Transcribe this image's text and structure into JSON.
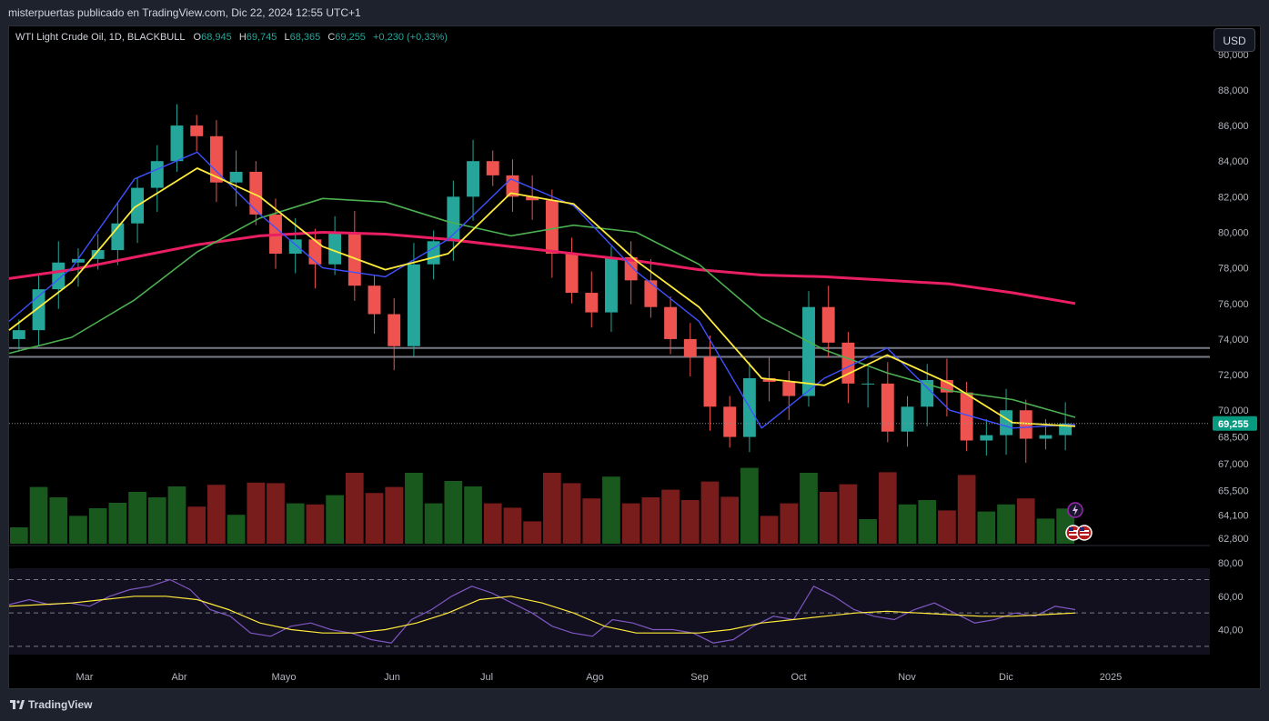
{
  "header": {
    "published": "misterpuertas publicado en TradingView.com, Dic 22, 2024 12:55 UTC+1"
  },
  "legend": {
    "symbol": "WTI Light Crude Oil, 1D, BLACKBULL",
    "open_label": "O",
    "open": "68,945",
    "high_label": "H",
    "high": "69,745",
    "low_label": "L",
    "low": "68,365",
    "close_label": "C",
    "close": "69,255",
    "change": "+0,230 (+0,33%)"
  },
  "currency": "USD",
  "footer": {
    "brand": "TradingView"
  },
  "colors": {
    "up": "#26a69a",
    "down": "#ef5350",
    "ma_fast": "#3f51ff",
    "ma_mid": "#ffeb3b",
    "ma_slow": "#4caf50",
    "ma_long": "#e91e63",
    "rsi": "#7e57c2",
    "rsi_ma": "#ffeb3b",
    "price_tag": "#089981"
  },
  "chart_data": {
    "type": "candlestick",
    "price_axis": {
      "ticks": [
        "90,000",
        "88,000",
        "86,000",
        "84,000",
        "82,000",
        "80,000",
        "78,000",
        "76,000",
        "74,000",
        "72,000",
        "70,000",
        "68,500",
        "67,000",
        "65,500",
        "64,100",
        "62,800"
      ],
      "ylim": [
        62.5,
        90.5
      ]
    },
    "months": [
      "Mar",
      "Abr",
      "Mayo",
      "Jun",
      "Jul",
      "Ago",
      "Sep",
      "Oct",
      "Nov",
      "Dic",
      "2025"
    ],
    "last_price": "69,255",
    "horizontal_levels": [
      73.5,
      73.0
    ],
    "ma200": [
      77.4,
      77.9,
      78.6,
      79.3,
      79.8,
      80.0,
      79.9,
      79.6,
      79.2,
      78.8,
      78.4,
      77.9,
      77.6,
      77.5,
      77.3,
      77.1,
      76.6,
      76.0
    ],
    "ma50": [
      73.2,
      74.1,
      76.2,
      78.9,
      80.8,
      81.9,
      81.7,
      80.6,
      79.8,
      80.4,
      80.0,
      78.2,
      75.2,
      73.4,
      72.1,
      71.1,
      70.6,
      69.6
    ],
    "ma20": [
      74.5,
      77.2,
      81.4,
      83.6,
      82.0,
      79.2,
      77.9,
      78.8,
      82.2,
      81.6,
      78.4,
      75.8,
      71.8,
      71.4,
      73.1,
      71.5,
      69.3,
      69.1
    ],
    "ma9": [
      75.0,
      78.0,
      83.0,
      84.5,
      81.0,
      78.0,
      77.5,
      79.6,
      83.0,
      81.5,
      77.8,
      75.0,
      69.0,
      71.8,
      73.5,
      70.0,
      69.0,
      69.2
    ],
    "closes": [
      74.5,
      76.8,
      78.3,
      78.5,
      79.0,
      80.5,
      82.5,
      84.0,
      86.0,
      85.4,
      82.8,
      83.4,
      81.0,
      78.8,
      79.6,
      78.2,
      80.0,
      77.0,
      75.4,
      73.6,
      78.2,
      79.5,
      82.0,
      84.0,
      83.2,
      82.0,
      81.8,
      78.8,
      76.6,
      75.5,
      78.6,
      77.3,
      75.8,
      74.0,
      73.0,
      70.2,
      68.5,
      71.8,
      71.6,
      70.8,
      75.8,
      73.8,
      71.5,
      71.5,
      68.8,
      70.2,
      71.7,
      71.0,
      68.3,
      68.6,
      70.0,
      68.4,
      68.6,
      69.25
    ],
    "volume_max_label": "",
    "rsi": {
      "ticks": [
        "80,00",
        "60,00",
        "40,00"
      ],
      "levels": [
        70,
        50,
        30
      ],
      "values": [
        55,
        58,
        55,
        56,
        54,
        60,
        64,
        66,
        70,
        64,
        52,
        48,
        38,
        36,
        42,
        44,
        40,
        38,
        34,
        32,
        46,
        52,
        60,
        66,
        62,
        56,
        50,
        42,
        38,
        36,
        46,
        44,
        40,
        40,
        38,
        32,
        34,
        42,
        48,
        46,
        66,
        60,
        52,
        48,
        46,
        52,
        56,
        50,
        44,
        46,
        50,
        48,
        54,
        52
      ],
      "ma": [
        54,
        55,
        56,
        58,
        60,
        60,
        58,
        52,
        44,
        40,
        38,
        38,
        40,
        44,
        50,
        58,
        60,
        56,
        50,
        42,
        38,
        38,
        38,
        40,
        44,
        46,
        48,
        50,
        51,
        50,
        49,
        48,
        48,
        49,
        50
      ]
    }
  }
}
